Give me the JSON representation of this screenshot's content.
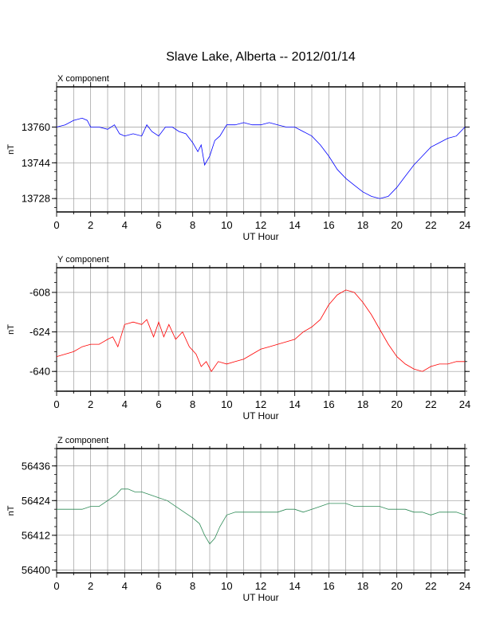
{
  "title": "Slave Lake, Alberta -- 2012/01/14",
  "chart_data": [
    {
      "type": "line",
      "panel_label": "X component",
      "xlabel": "UT Hour",
      "ylabel": "nT",
      "xlim": [
        0,
        24
      ],
      "ylim": [
        13722,
        13778
      ],
      "xticks": [
        0,
        2,
        4,
        6,
        8,
        10,
        12,
        14,
        16,
        18,
        20,
        22,
        24
      ],
      "yticks": [
        13728,
        13744,
        13760
      ],
      "grid": true,
      "color": "#0000ff",
      "x": [
        0,
        0.5,
        1,
        1.5,
        1.8,
        2,
        2.5,
        3,
        3.4,
        3.7,
        4,
        4.5,
        5,
        5.3,
        5.6,
        6,
        6.4,
        6.8,
        7.2,
        7.6,
        8,
        8.3,
        8.5,
        8.7,
        9,
        9.3,
        9.6,
        10,
        10.5,
        11,
        11.5,
        12,
        12.5,
        13,
        13.5,
        14,
        14.5,
        15,
        15.5,
        16,
        16.5,
        17,
        17.5,
        18,
        18.5,
        19,
        19.5,
        20,
        20.5,
        21,
        21.5,
        22,
        22.5,
        23,
        23.5,
        24
      ],
      "y": [
        13760,
        13761,
        13763,
        13764,
        13763,
        13760,
        13760,
        13759,
        13761,
        13757,
        13756,
        13757,
        13756,
        13761,
        13758,
        13756,
        13760,
        13760,
        13758,
        13757,
        13753,
        13749,
        13752,
        13743,
        13747,
        13754,
        13756,
        13761,
        13761,
        13762,
        13761,
        13761,
        13762,
        13761,
        13760,
        13760,
        13758,
        13756,
        13752,
        13747,
        13741,
        13737,
        13734,
        13731,
        13729,
        13728,
        13729,
        13733,
        13738,
        13743,
        13747,
        13751,
        13753,
        13755,
        13756,
        13760
      ]
    },
    {
      "type": "line",
      "panel_label": "Y component",
      "xlabel": "UT Hour",
      "ylabel": "nT",
      "xlim": [
        0,
        24
      ],
      "ylim": [
        -648,
        -598
      ],
      "xticks": [
        0,
        2,
        4,
        6,
        8,
        10,
        12,
        14,
        16,
        18,
        20,
        22,
        24
      ],
      "yticks": [
        -640,
        -624,
        -608
      ],
      "grid": true,
      "color": "#ff0000",
      "x": [
        0,
        0.5,
        1,
        1.5,
        2,
        2.5,
        3,
        3.3,
        3.6,
        4,
        4.5,
        5,
        5.3,
        5.7,
        6,
        6.3,
        6.6,
        7,
        7.4,
        7.8,
        8.2,
        8.5,
        8.8,
        9.1,
        9.5,
        10,
        10.5,
        11,
        11.5,
        12,
        12.5,
        13,
        13.5,
        14,
        14.5,
        15,
        15.5,
        16,
        16.5,
        17,
        17.5,
        18,
        18.5,
        19,
        19.5,
        20,
        20.5,
        21,
        21.5,
        22,
        22.5,
        23,
        23.5,
        24
      ],
      "y": [
        -634,
        -633,
        -632,
        -630,
        -629,
        -629,
        -627,
        -626,
        -630,
        -621,
        -620,
        -621,
        -619,
        -626,
        -620,
        -626,
        -621,
        -627,
        -624,
        -630,
        -633,
        -638,
        -636,
        -640,
        -636,
        -637,
        -636,
        -635,
        -633,
        -631,
        -630,
        -629,
        -628,
        -627,
        -624,
        -622,
        -619,
        -613,
        -609,
        -607,
        -608,
        -612,
        -617,
        -623,
        -629,
        -634,
        -637,
        -639,
        -640,
        -638,
        -637,
        -637,
        -636,
        -636
      ]
    },
    {
      "type": "line",
      "panel_label": "Z component",
      "xlabel": "UT Hour",
      "ylabel": "nT",
      "xlim": [
        0,
        24
      ],
      "ylim": [
        56399,
        56442
      ],
      "xticks": [
        0,
        2,
        4,
        6,
        8,
        10,
        12,
        14,
        16,
        18,
        20,
        22,
        24
      ],
      "yticks": [
        56400,
        56412,
        56424,
        56436
      ],
      "grid": true,
      "color": "#2e8b57",
      "x": [
        0,
        0.5,
        1,
        1.5,
        2,
        2.5,
        3,
        3.5,
        3.8,
        4.2,
        4.6,
        5,
        5.5,
        6,
        6.5,
        7,
        7.5,
        8,
        8.4,
        8.7,
        9,
        9.3,
        9.6,
        10,
        10.5,
        11,
        11.5,
        12,
        12.5,
        13,
        13.5,
        14,
        14.5,
        15,
        15.5,
        16,
        16.5,
        17,
        17.5,
        18,
        18.5,
        19,
        19.5,
        20,
        20.5,
        21,
        21.5,
        22,
        22.5,
        23,
        23.5,
        24
      ],
      "y": [
        56421,
        56421,
        56421,
        56421,
        56422,
        56422,
        56424,
        56426,
        56428,
        56428,
        56427,
        56427,
        56426,
        56425,
        56424,
        56422,
        56420,
        56418,
        56416,
        56412,
        56409,
        56411,
        56415,
        56419,
        56420,
        56420,
        56420,
        56420,
        56420,
        56420,
        56421,
        56421,
        56420,
        56421,
        56422,
        56423,
        56423,
        56423,
        56422,
        56422,
        56422,
        56422,
        56421,
        56421,
        56421,
        56420,
        56420,
        56419,
        56420,
        56420,
        56420,
        56419
      ]
    }
  ]
}
